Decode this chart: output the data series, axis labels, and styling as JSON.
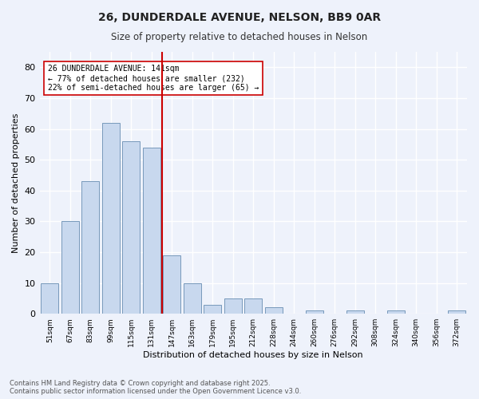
{
  "title1": "26, DUNDERDALE AVENUE, NELSON, BB9 0AR",
  "title2": "Size of property relative to detached houses in Nelson",
  "xlabel": "Distribution of detached houses by size in Nelson",
  "ylabel": "Number of detached properties",
  "categories": [
    "51sqm",
    "67sqm",
    "83sqm",
    "99sqm",
    "115sqm",
    "131sqm",
    "147sqm",
    "163sqm",
    "179sqm",
    "195sqm",
    "212sqm",
    "228sqm",
    "244sqm",
    "260sqm",
    "276sqm",
    "292sqm",
    "308sqm",
    "324sqm",
    "340sqm",
    "356sqm",
    "372sqm"
  ],
  "values": [
    10,
    30,
    43,
    62,
    56,
    54,
    19,
    10,
    3,
    5,
    5,
    2,
    0,
    1,
    0,
    1,
    0,
    1,
    0,
    0,
    1
  ],
  "bar_color": "#c8d8ee",
  "bar_edge_color": "#7799bb",
  "vline_x": 5.5,
  "vline_color": "#cc0000",
  "annotation_text": "26 DUNDERDALE AVENUE: 141sqm\n← 77% of detached houses are smaller (232)\n22% of semi-detached houses are larger (65) →",
  "annotation_box_color": "#ffffff",
  "annotation_box_edge": "#cc0000",
  "ylim": [
    0,
    85
  ],
  "yticks": [
    0,
    10,
    20,
    30,
    40,
    50,
    60,
    70,
    80
  ],
  "background_color": "#eef2fb",
  "grid_color": "#ffffff",
  "footer": "Contains HM Land Registry data © Crown copyright and database right 2025.\nContains public sector information licensed under the Open Government Licence v3.0."
}
